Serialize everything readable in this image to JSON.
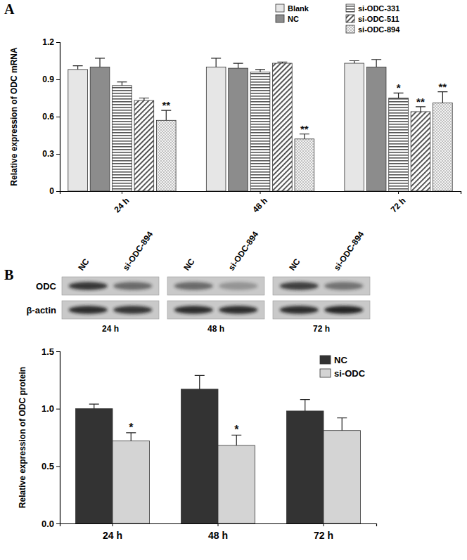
{
  "chart_data": [
    {
      "type": "bar",
      "annotations": [
        "A"
      ],
      "ylabel": "Relative expression of ODC mRNA",
      "categories": [
        "24 h",
        "48 h",
        "72 h"
      ],
      "series": [
        {
          "name": "Blank",
          "color": "#e6e6e6",
          "values": [
            0.98,
            1.0,
            1.03
          ],
          "errors": [
            0.03,
            0.07,
            0.02
          ]
        },
        {
          "name": "NC",
          "color": "#8c8c8c",
          "values": [
            1.0,
            0.99,
            1.0
          ],
          "errors": [
            0.07,
            0.04,
            0.06
          ]
        },
        {
          "name": "si-ODC-331",
          "color": "#555555",
          "values": [
            0.85,
            0.96,
            0.75
          ],
          "errors": [
            0.03,
            0.02,
            0.04
          ],
          "significance": [
            null,
            null,
            "*"
          ]
        },
        {
          "name": "si-ODC-511",
          "color": "#444444",
          "values": [
            0.73,
            1.03,
            0.64
          ],
          "errors": [
            0.02,
            0.01,
            0.04
          ],
          "significance": [
            null,
            null,
            "**"
          ]
        },
        {
          "name": "si-ODC-894",
          "color": "#666666",
          "values": [
            0.57,
            0.42,
            0.71
          ],
          "errors": [
            0.08,
            0.04,
            0.09
          ],
          "significance": [
            "**",
            "**",
            "**"
          ]
        }
      ],
      "ylim": [
        0,
        1.2
      ],
      "yticks": [
        0,
        0.3,
        0.6,
        0.9,
        1.2
      ],
      "legend": "upper right"
    },
    {
      "type": "bar",
      "ylabel": "Relative expression of ODC protein",
      "categories": [
        "24 h",
        "48 h",
        "72 h"
      ],
      "series": [
        {
          "name": "NC",
          "color": "#333333",
          "values": [
            1.0,
            1.17,
            0.98
          ],
          "errors": [
            0.04,
            0.12,
            0.1
          ]
        },
        {
          "name": "si-ODC",
          "color": "#d4d4d4",
          "values": [
            0.72,
            0.68,
            0.81
          ],
          "errors": [
            0.07,
            0.09,
            0.11
          ],
          "significance": [
            "*",
            "*",
            null
          ]
        }
      ],
      "ylim": [
        0,
        1.5
      ],
      "yticks": [
        {
          "value": 0,
          "label": "0.0"
        },
        0.5,
        {
          "value": 1,
          "label": "1.0"
        },
        1.5
      ],
      "legend": "upper right"
    }
  ],
  "blot": {
    "label": "B",
    "lanes": [
      "NC",
      "si-ODC-894"
    ],
    "rows": [
      "ODC",
      "β-actin"
    ],
    "times": [
      "24 h",
      "48 h",
      "72 h"
    ]
  }
}
